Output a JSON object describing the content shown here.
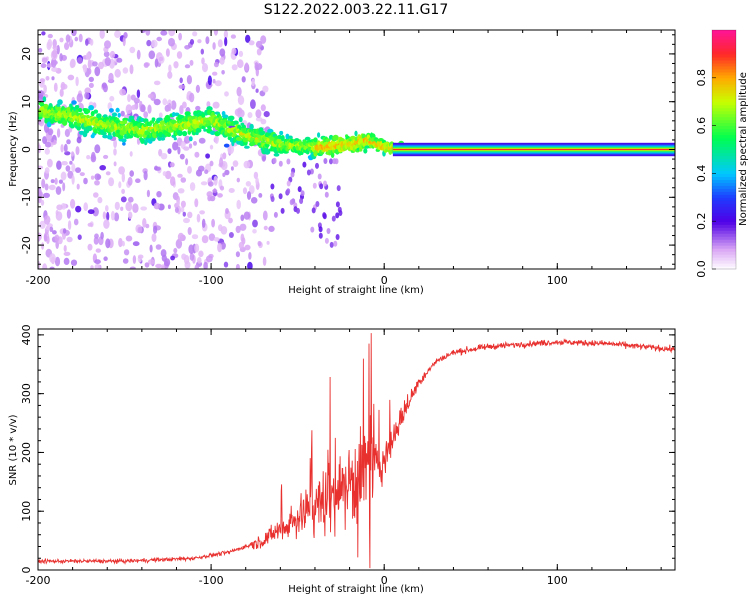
{
  "title": "S122.2022.003.22.11.G17",
  "chart_data": [
    {
      "type": "heatmap",
      "xlabel": "Height of straight line (km)",
      "ylabel": "Frequency (Hz)",
      "xlim": [
        -200,
        168
      ],
      "ylim": [
        -25,
        25
      ],
      "x_ticks": [
        -200,
        -100,
        0,
        100
      ],
      "y_ticks": [
        -20,
        -10,
        0,
        10,
        20
      ],
      "colorbar": {
        "label": "Normalized spectral amplitude",
        "ticks": [
          0.0,
          0.2,
          0.4,
          0.6,
          0.8
        ],
        "range": [
          0,
          1
        ]
      },
      "ridge": [
        {
          "x": -200,
          "f": 8
        },
        {
          "x": -180,
          "f": 7
        },
        {
          "x": -160,
          "f": 5
        },
        {
          "x": -140,
          "f": 4
        },
        {
          "x": -120,
          "f": 5
        },
        {
          "x": -100,
          "f": 6
        },
        {
          "x": -80,
          "f": 3
        },
        {
          "x": -60,
          "f": 1
        },
        {
          "x": -40,
          "f": 0.5
        },
        {
          "x": -20,
          "f": 1
        },
        {
          "x": -10,
          "f": 2
        },
        {
          "x": 0,
          "f": 0.5
        },
        {
          "x": 10,
          "f": 0
        },
        {
          "x": 168,
          "f": 0
        }
      ]
    },
    {
      "type": "line",
      "xlabel": "Height of straight line (km)",
      "ylabel": "SNR (10 * v/v)",
      "xlim": [
        -200,
        168
      ],
      "ylim": [
        0,
        410
      ],
      "x_ticks": [
        -200,
        -100,
        0,
        100
      ],
      "y_ticks": [
        0,
        100,
        200,
        300,
        400
      ],
      "color": "#e8312f",
      "trend": [
        {
          "x": -200,
          "y": 15
        },
        {
          "x": -150,
          "y": 15
        },
        {
          "x": -110,
          "y": 20
        },
        {
          "x": -90,
          "y": 30
        },
        {
          "x": -70,
          "y": 50
        },
        {
          "x": -50,
          "y": 90
        },
        {
          "x": -30,
          "y": 130
        },
        {
          "x": -15,
          "y": 160
        },
        {
          "x": 0,
          "y": 190
        },
        {
          "x": 10,
          "y": 260
        },
        {
          "x": 20,
          "y": 320
        },
        {
          "x": 30,
          "y": 355
        },
        {
          "x": 40,
          "y": 370
        },
        {
          "x": 60,
          "y": 380
        },
        {
          "x": 100,
          "y": 388
        },
        {
          "x": 130,
          "y": 385
        },
        {
          "x": 168,
          "y": 375
        }
      ]
    }
  ]
}
